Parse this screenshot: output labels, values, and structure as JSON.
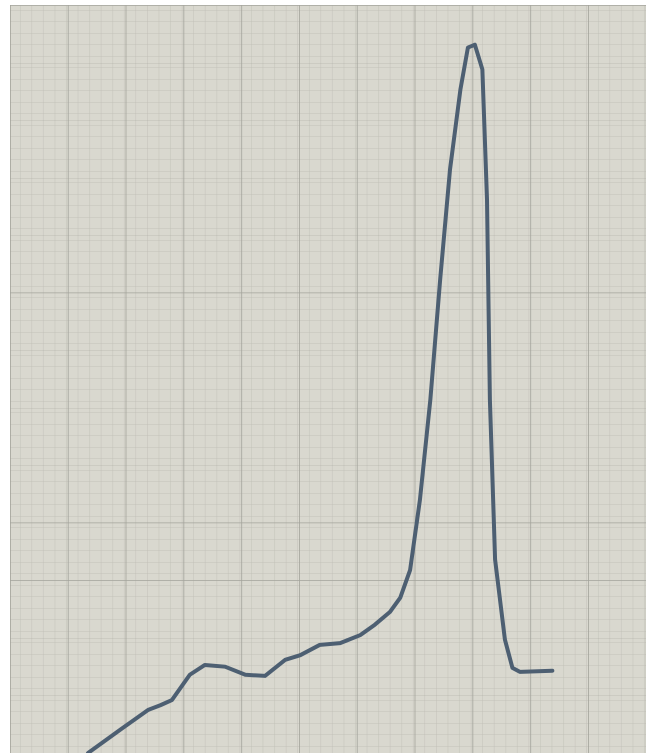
{
  "chart_data": {
    "type": "line",
    "x": [
      1.35,
      1.9,
      2.39,
      2.6,
      2.8,
      3.11,
      3.37,
      3.72,
      4.07,
      4.41,
      4.76,
      5.02,
      5.36,
      5.71,
      6.06,
      6.31,
      6.57,
      6.75,
      6.92,
      7.09,
      7.27,
      7.44,
      7.61,
      7.79,
      7.92,
      8.04,
      8.17,
      8.25,
      8.3,
      8.39,
      8.56,
      8.69,
      8.82,
      9.38
    ],
    "series": [
      {
        "color": "#4d5f72",
        "values": [
          0,
          0.4,
          0.75,
          0.83,
          0.92,
          1.36,
          1.53,
          1.5,
          1.36,
          1.34,
          1.62,
          1.7,
          1.88,
          1.91,
          2.05,
          2.23,
          2.45,
          2.7,
          3.18,
          4.4,
          6.14,
          8.23,
          10.14,
          11.53,
          12.26,
          12.31,
          11.88,
          9.62,
          6.14,
          3.36,
          1.97,
          1.48,
          1.41,
          1.43
        ]
      }
    ],
    "xlim": [
      0,
      11
    ],
    "ylim": [
      0,
      13
    ],
    "grid": true
  }
}
